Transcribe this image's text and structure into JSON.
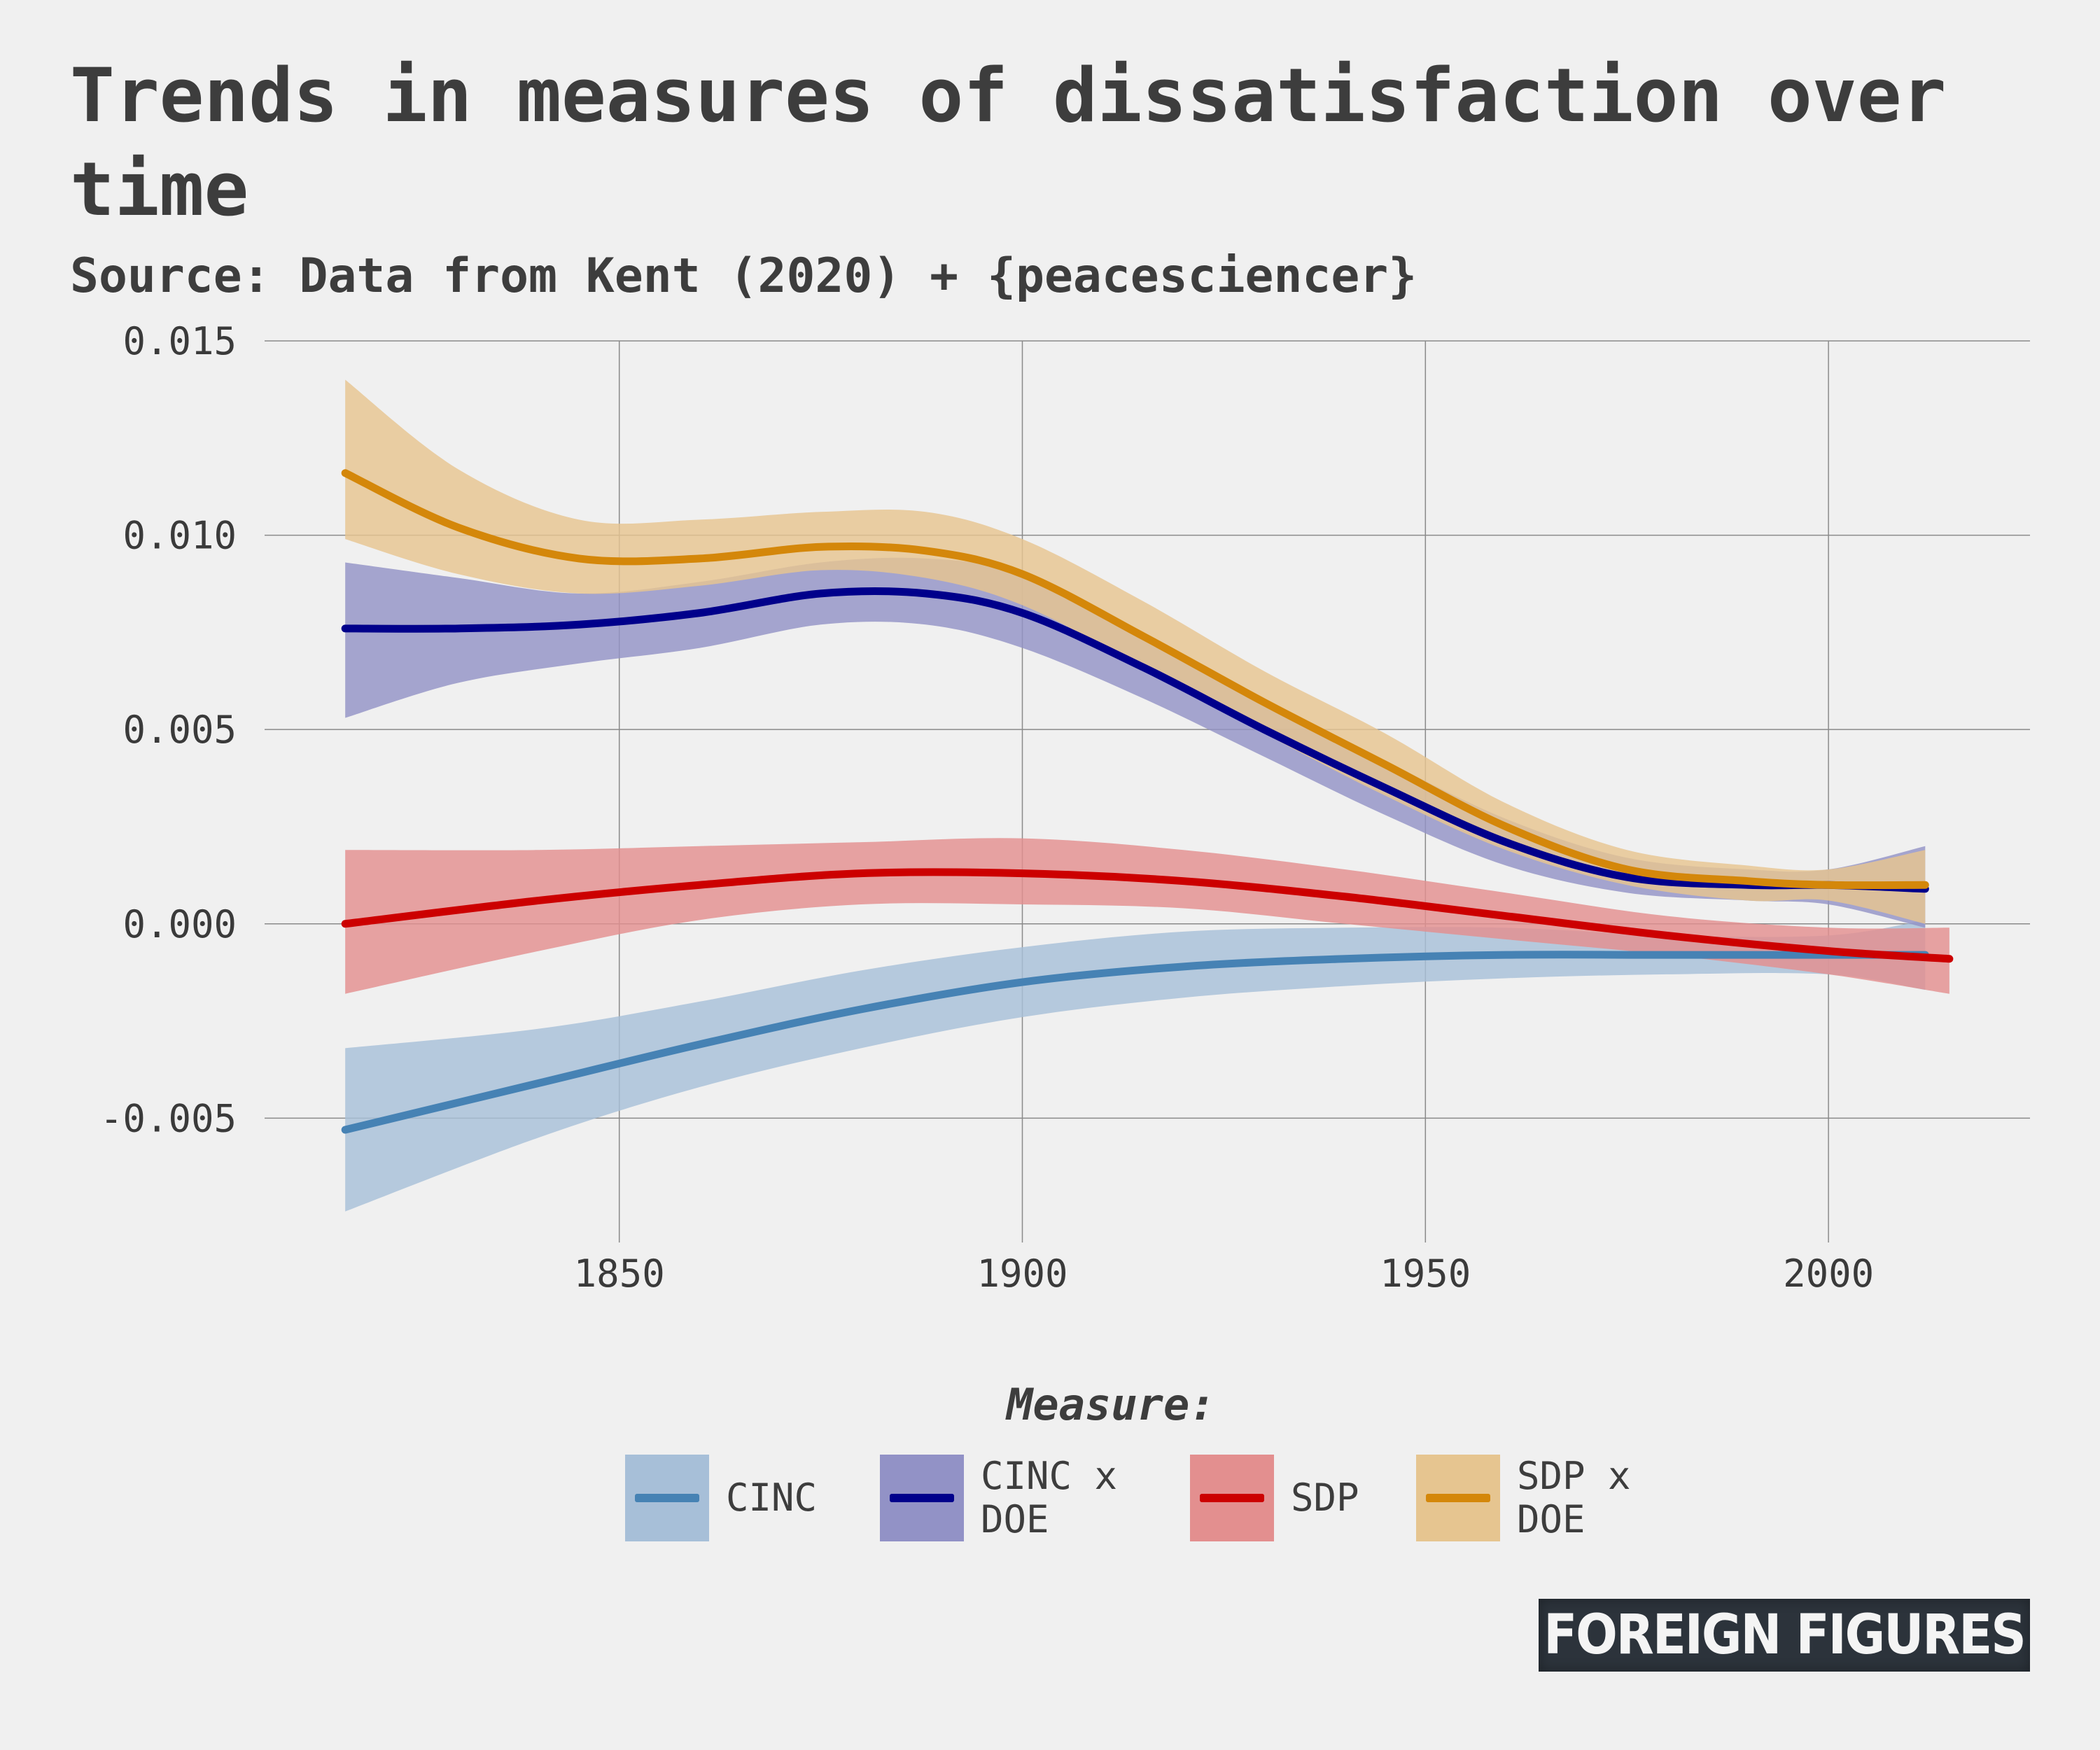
{
  "title": "Trends in measures of dissatisfaction over time",
  "subtitle": "Source: Data from Kent (2020) + {peacesciencer}",
  "brand": "FOREIGN FIGURES",
  "legend": {
    "title": "Measure:",
    "items": [
      {
        "label": "CINC",
        "line_color": "#4682b4",
        "band_color": "#a7bfd8"
      },
      {
        "label": "CINC x DOE",
        "line_color": "#00008b",
        "band_color": "#9292c6"
      },
      {
        "label": "SDP",
        "line_color": "#cc0000",
        "band_color": "#e38f8f"
      },
      {
        "label": "SDP x DOE",
        "line_color": "#d4870a",
        "band_color": "#e6c590"
      }
    ]
  },
  "chart_data": {
    "type": "line",
    "title": "Trends in measures of dissatisfaction over time",
    "subtitle": "Source: Data from Kent (2020) + {peacesciencer}",
    "xlim": [
      1806,
      2025
    ],
    "ylim": [
      -0.0082,
      0.015
    ],
    "x_ticks": [
      1850,
      1900,
      1950,
      2000
    ],
    "x_tick_labels": [
      "1850",
      "1900",
      "1950",
      "2000"
    ],
    "y_ticks": [
      -0.005,
      0.0,
      0.005,
      0.01,
      0.015
    ],
    "y_tick_labels": [
      "-0.005",
      "0.000",
      "0.005",
      "0.010",
      "0.015"
    ],
    "grid": true,
    "legend_position": "bottom",
    "series": [
      {
        "name": "CINC",
        "color": "#4682b4",
        "band_color": "#a7bfd8",
        "x": [
          1816,
          1840,
          1860,
          1880,
          1900,
          1920,
          1940,
          1960,
          1980,
          2000,
          2012
        ],
        "y": [
          -0.0053,
          -0.0041,
          -0.0031,
          -0.0022,
          -0.0015,
          -0.0011,
          -0.0009,
          -0.0008,
          -0.0008,
          -0.0008,
          -0.0008
        ],
        "lower": [
          -0.0074,
          -0.0055,
          -0.0042,
          -0.0032,
          -0.0024,
          -0.0019,
          -0.0016,
          -0.0014,
          -0.0013,
          -0.0013,
          -0.0017
        ],
        "upper": [
          -0.0032,
          -0.0027,
          -0.002,
          -0.0012,
          -0.0006,
          -0.0002,
          -0.0001,
          -0.0001,
          -0.0003,
          -0.0003,
          0.0001
        ]
      },
      {
        "name": "CINC x DOE",
        "color": "#00008b",
        "band_color": "#9292c6",
        "x": [
          1816,
          1830,
          1845,
          1860,
          1875,
          1888,
          1900,
          1915,
          1930,
          1945,
          1960,
          1975,
          1990,
          2000,
          2012
        ],
        "y": [
          0.0076,
          0.0076,
          0.0077,
          0.008,
          0.0085,
          0.0085,
          0.008,
          0.0066,
          0.005,
          0.0035,
          0.0021,
          0.0012,
          0.001,
          0.001,
          0.0009
        ],
        "lower": [
          0.0053,
          0.0062,
          0.0067,
          0.0071,
          0.0077,
          0.0077,
          0.0071,
          0.0058,
          0.0043,
          0.0028,
          0.0015,
          0.0008,
          0.0006,
          0.0005,
          -0.0001
        ],
        "upper": [
          0.0093,
          0.0089,
          0.0085,
          0.0088,
          0.0093,
          0.0094,
          0.009,
          0.0075,
          0.0058,
          0.0042,
          0.0027,
          0.0017,
          0.0014,
          0.0014,
          0.002
        ]
      },
      {
        "name": "SDP",
        "color": "#cc0000",
        "band_color": "#e38f8f",
        "x": [
          1816,
          1840,
          1860,
          1880,
          1900,
          1920,
          1940,
          1960,
          1980,
          2000,
          2015
        ],
        "y": [
          0.0,
          0.0006,
          0.001,
          0.0013,
          0.0013,
          0.0011,
          0.0007,
          0.0002,
          -0.0003,
          -0.0007,
          -0.0009
        ],
        "lower": [
          -0.0018,
          -0.0007,
          0.0001,
          0.0005,
          0.0005,
          0.0004,
          0.0,
          -0.0004,
          -0.0008,
          -0.0013,
          -0.0018
        ],
        "upper": [
          0.0019,
          0.0019,
          0.002,
          0.0021,
          0.0022,
          0.0019,
          0.0014,
          0.0008,
          0.0002,
          -0.0001,
          -0.0001
        ]
      },
      {
        "name": "SDP x DOE",
        "color": "#d4870a",
        "band_color": "#e6c590",
        "x": [
          1816,
          1830,
          1845,
          1860,
          1875,
          1888,
          1900,
          1915,
          1930,
          1945,
          1960,
          1975,
          1990,
          2000,
          2012
        ],
        "y": [
          0.0116,
          0.0102,
          0.0094,
          0.0094,
          0.0097,
          0.0096,
          0.009,
          0.0074,
          0.0057,
          0.0041,
          0.0025,
          0.0014,
          0.0011,
          0.001,
          0.001
        ],
        "lower": [
          0.0099,
          0.009,
          0.0085,
          0.0087,
          0.0091,
          0.0089,
          0.0082,
          0.0066,
          0.0049,
          0.0033,
          0.0019,
          0.001,
          0.0006,
          0.0006,
          0.0
        ],
        "upper": [
          0.014,
          0.0117,
          0.0104,
          0.0104,
          0.0106,
          0.0106,
          0.0099,
          0.0083,
          0.0065,
          0.0049,
          0.0031,
          0.0019,
          0.0015,
          0.0014,
          0.0019
        ]
      }
    ]
  }
}
